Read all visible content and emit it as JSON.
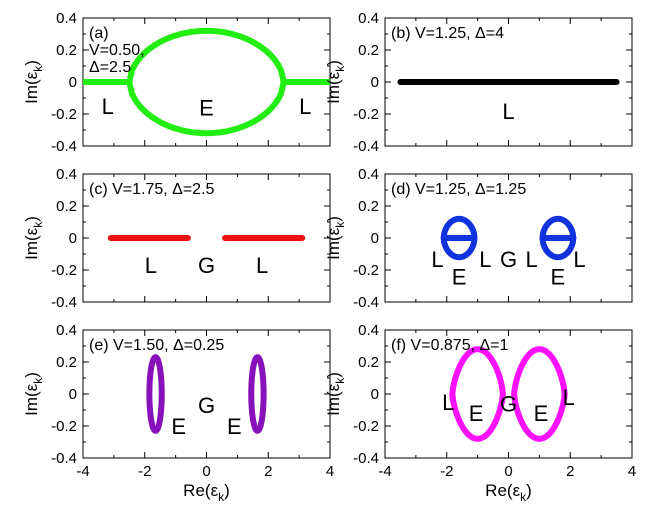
{
  "figure": {
    "xlabel": "Re(ε_k)",
    "ylabel": "Im(ε_k)",
    "x_ticks": [
      "-4",
      "-2",
      "0",
      "2",
      "4"
    ],
    "y_ticks": [
      "0.4",
      "0.2",
      "0",
      "-0.2",
      "-0.4"
    ],
    "colors": {
      "a": "#22ee11",
      "b": "#000000",
      "c": "#ee1111",
      "d": "#1133dd",
      "e": "#8811bb",
      "f": "#ff11ff"
    }
  },
  "chart_data": [
    {
      "panel": "a",
      "type": "line",
      "annotation": [
        "(a)",
        "V=0.50,",
        "Δ=2.5"
      ],
      "xlim": [
        -4,
        4
      ],
      "ylim": [
        -0.4,
        0.4
      ],
      "grid": false,
      "series": [
        {
          "kind": "segment",
          "x": [
            -4.2,
            -2.5
          ],
          "y": 0
        },
        {
          "kind": "segment",
          "x": [
            2.5,
            4.2
          ],
          "y": 0
        },
        {
          "kind": "loop",
          "cx": 0,
          "halfwidth": 2.5,
          "amplitude": 0.32
        }
      ],
      "labels": [
        {
          "text": "L",
          "x": -3.2,
          "y": -0.15
        },
        {
          "text": "E",
          "x": 0,
          "y": -0.16
        },
        {
          "text": "L",
          "x": 3.2,
          "y": -0.15
        }
      ]
    },
    {
      "panel": "b",
      "type": "line",
      "annotation": [
        "(b) V=1.25, Δ=4"
      ],
      "xlim": [
        -4,
        4
      ],
      "ylim": [
        -0.4,
        0.4
      ],
      "grid": false,
      "series": [
        {
          "kind": "segment",
          "x": [
            -3.5,
            3.5
          ],
          "y": 0
        }
      ],
      "labels": [
        {
          "text": "L",
          "x": 0,
          "y": -0.18
        }
      ]
    },
    {
      "panel": "c",
      "type": "line",
      "annotation": [
        "(c) V=1.75, Δ=2.5"
      ],
      "xlim": [
        -4,
        4
      ],
      "ylim": [
        -0.4,
        0.4
      ],
      "grid": false,
      "series": [
        {
          "kind": "segment",
          "x": [
            -3.1,
            -0.6
          ],
          "y": 0
        },
        {
          "kind": "segment",
          "x": [
            0.6,
            3.1
          ],
          "y": 0
        }
      ],
      "labels": [
        {
          "text": "L",
          "x": -1.8,
          "y": -0.17
        },
        {
          "text": "G",
          "x": 0,
          "y": -0.17
        },
        {
          "text": "L",
          "x": 1.8,
          "y": -0.17
        }
      ]
    },
    {
      "panel": "d",
      "type": "line",
      "annotation": [
        "(d) V=1.25, Δ=1.25"
      ],
      "xlim": [
        -4,
        4
      ],
      "ylim": [
        -0.4,
        0.4
      ],
      "grid": false,
      "series": [
        {
          "kind": "segment",
          "x": [
            -2.1,
            -1.1
          ],
          "y": 0
        },
        {
          "kind": "loop",
          "cx": -1.6,
          "halfwidth": 0.5,
          "amplitude": 0.12
        },
        {
          "kind": "segment",
          "x": [
            1.1,
            2.1
          ],
          "y": 0
        },
        {
          "kind": "loop",
          "cx": 1.6,
          "halfwidth": 0.5,
          "amplitude": 0.12
        }
      ],
      "labels": [
        {
          "text": "L",
          "x": -2.3,
          "y": -0.13
        },
        {
          "text": "E",
          "x": -1.6,
          "y": -0.24
        },
        {
          "text": "L",
          "x": -0.75,
          "y": -0.13
        },
        {
          "text": "G",
          "x": 0,
          "y": -0.13
        },
        {
          "text": "L",
          "x": 0.75,
          "y": -0.13
        },
        {
          "text": "E",
          "x": 1.6,
          "y": -0.24
        },
        {
          "text": "L",
          "x": 2.3,
          "y": -0.13
        }
      ]
    },
    {
      "panel": "e",
      "type": "line",
      "annotation": [
        "(e) V=1.50, Δ=0.25"
      ],
      "xlim": [
        -4,
        4
      ],
      "ylim": [
        -0.4,
        0.4
      ],
      "grid": false,
      "series": [
        {
          "kind": "ellipse",
          "cx": -1.65,
          "rx": 0.2,
          "ry": 0.23
        },
        {
          "kind": "ellipse",
          "cx": 1.65,
          "rx": 0.2,
          "ry": 0.23
        }
      ],
      "labels": [
        {
          "text": "E",
          "x": -0.9,
          "y": -0.2
        },
        {
          "text": "G",
          "x": 0,
          "y": -0.07
        },
        {
          "text": "E",
          "x": 0.9,
          "y": -0.2
        }
      ]
    },
    {
      "panel": "f",
      "type": "line",
      "annotation": [
        "(f) V=0.875, Δ=1"
      ],
      "xlim": [
        -4,
        4
      ],
      "ylim": [
        -0.4,
        0.4
      ],
      "grid": false,
      "series": [
        {
          "kind": "lens",
          "cx": -1,
          "halfwidth": 0.82,
          "amplitude": 0.28
        },
        {
          "kind": "lens",
          "cx": 1,
          "halfwidth": 0.82,
          "amplitude": 0.28
        }
      ],
      "labels": [
        {
          "text": "L",
          "x": -1.95,
          "y": -0.05
        },
        {
          "text": "E",
          "x": -1.05,
          "y": -0.12
        },
        {
          "text": "G",
          "x": 0,
          "y": -0.06
        },
        {
          "text": "E",
          "x": 1.05,
          "y": -0.12
        },
        {
          "text": "L",
          "x": 1.95,
          "y": -0.02
        }
      ]
    }
  ]
}
